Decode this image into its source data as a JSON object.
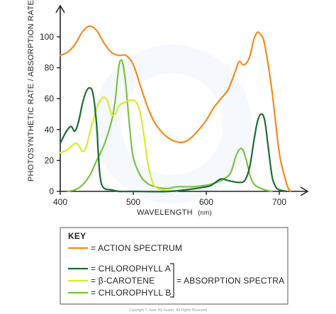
{
  "chart_data": {
    "type": "line",
    "xlabel": "WAVELENGTH",
    "xlabel_unit": "(nm)",
    "ylabel": "PHOTOSYNTHETIC RATE / ABSORPTION RATE",
    "xlim": [
      400,
      720
    ],
    "ylim": [
      0,
      110
    ],
    "x_ticks": [
      400,
      500,
      600,
      700
    ],
    "y_ticks": [
      0,
      20,
      40,
      60,
      80,
      100
    ],
    "grid": false,
    "series": [
      {
        "name": "ACTION SPECTRUM",
        "color": "#f28a1e",
        "x": [
          400,
          410,
          420,
          430,
          440,
          450,
          460,
          470,
          480,
          490,
          500,
          510,
          520,
          530,
          540,
          550,
          560,
          570,
          580,
          590,
          600,
          610,
          620,
          630,
          640,
          645,
          650,
          655,
          660,
          665,
          670,
          675,
          680,
          690,
          700,
          710,
          715
        ],
        "y": [
          88,
          90,
          95,
          103,
          107,
          104,
          96,
          90,
          88,
          88,
          82,
          68,
          54,
          44,
          38,
          34,
          32,
          32,
          35,
          40,
          46,
          54,
          60,
          66,
          78,
          84,
          82,
          83,
          88,
          98,
          103,
          101,
          95,
          65,
          25,
          5,
          0
        ]
      },
      {
        "name": "CHLOROPHYLL A",
        "color": "#1d6b35",
        "x": [
          400,
          405,
          410,
          415,
          420,
          425,
          430,
          435,
          440,
          445,
          450,
          452,
          455,
          460,
          470,
          480,
          500,
          550,
          600,
          610,
          620,
          630,
          640,
          650,
          655,
          660,
          665,
          670,
          675,
          680,
          685,
          690,
          695,
          700,
          710
        ],
        "y": [
          31,
          36,
          40,
          42,
          39,
          45,
          56,
          64,
          67,
          63,
          42,
          25,
          8,
          2,
          1,
          0,
          0,
          0,
          3,
          5,
          8,
          7,
          6,
          6,
          9,
          17,
          32,
          45,
          50,
          46,
          28,
          10,
          3,
          1,
          0
        ]
      },
      {
        "name": "β-CAROTENE",
        "color": "#d9ec2c",
        "x": [
          400,
          410,
          420,
          425,
          430,
          435,
          440,
          445,
          450,
          455,
          460,
          465,
          470,
          475,
          480,
          485,
          490,
          495,
          500,
          505,
          510,
          515,
          520,
          525,
          530,
          540,
          560
        ],
        "y": [
          25,
          27,
          31,
          30,
          26,
          28,
          37,
          46,
          54,
          59,
          61,
          58,
          50,
          50,
          55,
          57,
          58,
          59,
          59,
          57,
          50,
          35,
          18,
          8,
          3,
          1,
          0
        ]
      },
      {
        "name": "CHLOROPHYLL B",
        "color": "#7cc142",
        "x": [
          410,
          420,
          430,
          440,
          450,
          460,
          470,
          475,
          480,
          483,
          486,
          490,
          495,
          500,
          510,
          520,
          530,
          540,
          550,
          560,
          580,
          600,
          610,
          620,
          630,
          635,
          640,
          645,
          650,
          655,
          660,
          665,
          670,
          680,
          690
        ],
        "y": [
          0,
          1,
          4,
          10,
          20,
          30,
          45,
          58,
          80,
          85,
          82,
          68,
          42,
          22,
          10,
          5,
          3,
          2,
          2,
          3,
          3,
          4,
          5,
          7,
          10,
          14,
          22,
          27,
          27,
          20,
          10,
          5,
          3,
          1,
          0
        ]
      }
    ],
    "key": {
      "title": "KEY",
      "entries": [
        "= ACTION  SPECTRUM",
        "= CHLOROPHYLL  A",
        "= β-CAROTENE",
        "= CHLOROPHYLL  B"
      ],
      "bracket_label": "= ABSORPTION  SPECTRA"
    },
    "copyright": "Copyright © Save My Exams. All Rights Reserved"
  }
}
